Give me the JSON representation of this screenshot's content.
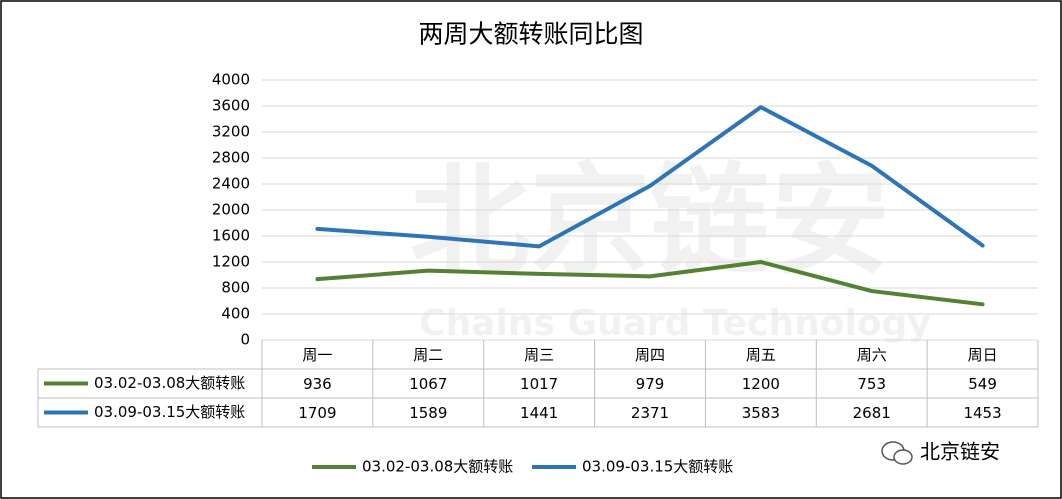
{
  "chart_data": {
    "type": "line",
    "title": "两周大额转账同比图",
    "categories": [
      "周一",
      "周二",
      "周三",
      "周四",
      "周五",
      "周六",
      "周日"
    ],
    "series": [
      {
        "name": "03.02-03.08大额转账",
        "color": "#548235",
        "values": [
          936,
          1067,
          1017,
          979,
          1200,
          753,
          549
        ]
      },
      {
        "name": "03.09-03.15大额转账",
        "color": "#2e75b6",
        "values": [
          1709,
          1589,
          1441,
          2371,
          3583,
          2681,
          1453
        ]
      }
    ],
    "ylim": [
      0,
      4000
    ],
    "yticks": [
      0,
      400,
      800,
      1200,
      1600,
      2000,
      2400,
      2800,
      3200,
      3600,
      4000
    ],
    "grid": true,
    "data_table": true,
    "legend": "bottom",
    "watermark": [
      "北京链安",
      "Chains Guard Technology"
    ],
    "source": "北京链安"
  }
}
